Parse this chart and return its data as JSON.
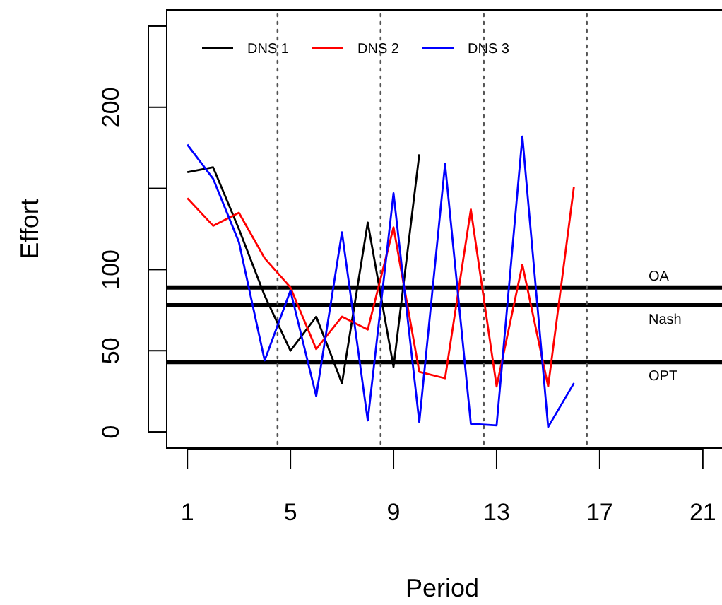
{
  "chart_data": {
    "type": "line",
    "xlabel": "Period",
    "ylabel": "Effort",
    "x": [
      1,
      2,
      3,
      4,
      5,
      6,
      7,
      8,
      9,
      10,
      11,
      12,
      13,
      14,
      15,
      16
    ],
    "xlim": [
      0.2,
      21.8
    ],
    "xticks": [
      1,
      5,
      9,
      13,
      17,
      21
    ],
    "ylim": [
      -10,
      260
    ],
    "yticks": [
      0,
      50,
      100,
      {
        "value": 150,
        "label": null
      },
      200,
      {
        "value": 250,
        "label": null
      }
    ],
    "series": [
      {
        "name": "DNS 1",
        "color": "#000000",
        "values": [
          160,
          163,
          125,
          84,
          50,
          71,
          30,
          129,
          40,
          171,
          null,
          null,
          null,
          null,
          null,
          null
        ]
      },
      {
        "name": "DNS 2",
        "color": "#ff0000",
        "values": [
          144,
          127,
          135,
          107,
          89,
          51,
          71,
          63,
          126,
          37,
          33,
          137,
          28,
          103,
          28,
          151
        ]
      },
      {
        "name": "DNS 3",
        "color": "#0000ff",
        "values": [
          177,
          156,
          117,
          44,
          87,
          22,
          123,
          7,
          147,
          6,
          165,
          5,
          4,
          182,
          3,
          30
        ]
      }
    ],
    "ref_lines": [
      {
        "axis": "y",
        "value": 89,
        "label": "OA",
        "color": "#000000"
      },
      {
        "axis": "y",
        "value": 78,
        "label": "Nash",
        "color": "#000000"
      },
      {
        "axis": "y",
        "value": 43,
        "label": "OPT",
        "color": "#000000"
      },
      {
        "axis": "x",
        "value": 4.5,
        "color": "#555555",
        "line_style": "dotted"
      },
      {
        "axis": "x",
        "value": 8.5,
        "color": "#555555",
        "line_style": "dotted"
      },
      {
        "axis": "x",
        "value": 12.5,
        "color": "#555555",
        "line_style": "dotted"
      },
      {
        "axis": "x",
        "value": 16.5,
        "color": "#555555",
        "line_style": "dotted"
      }
    ],
    "legend": "top left",
    "grid": false,
    "marker": "none",
    "line_style": "solid"
  }
}
